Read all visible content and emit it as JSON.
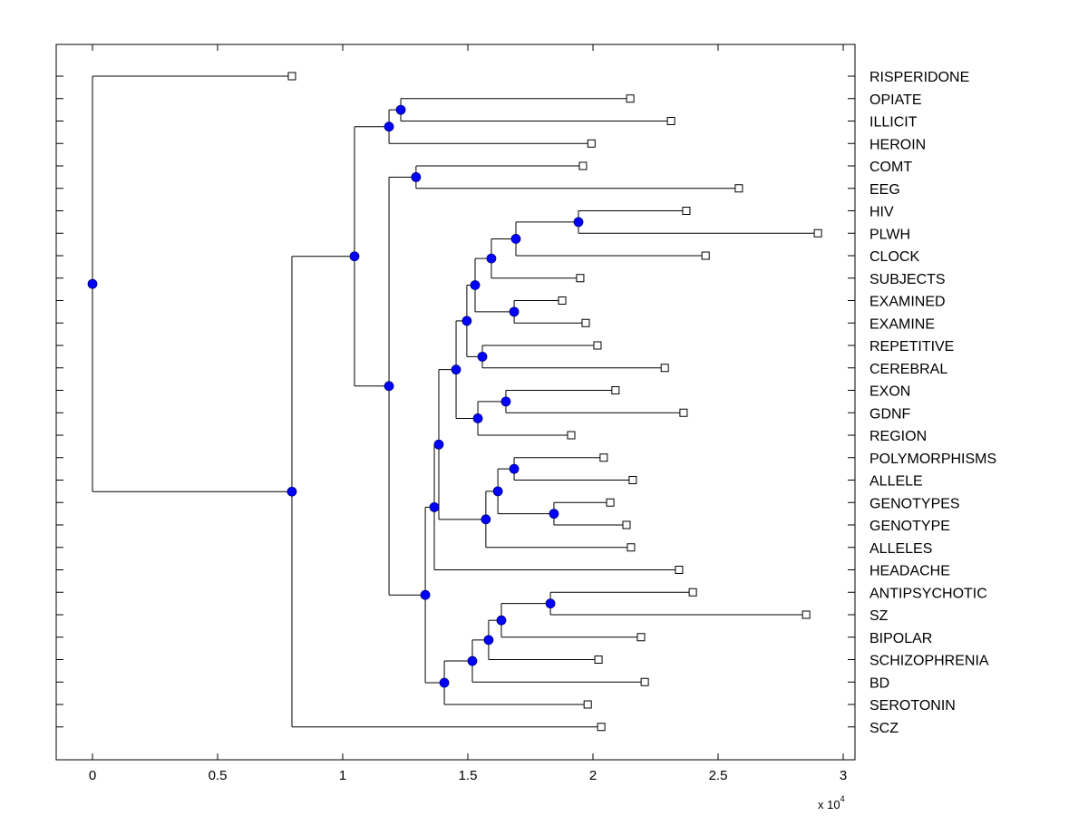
{
  "chart_data": {
    "type": "dendrogram",
    "title": "",
    "xlabel": "",
    "ylabel": "",
    "x_exponent_label": "x 10",
    "x_exponent_power": "4",
    "xlim": [
      -1400,
      30400
    ],
    "xticks": [
      0,
      5000,
      10000,
      15000,
      20000,
      25000,
      30000
    ],
    "xtick_labels": [
      "0",
      "0.5",
      "1",
      "1.5",
      "2",
      "2.5",
      "3"
    ],
    "grid": false,
    "colors": {
      "node_fill": "#0000ff",
      "leaf_fill": "#ffffff",
      "line": "#000000"
    },
    "leaves": [
      {
        "label": "RISPERIDONE",
        "x": 7970
      },
      {
        "label": "OPIATE",
        "x": 21490
      },
      {
        "label": "ILLICIT",
        "x": 23120
      },
      {
        "label": "HEROIN",
        "x": 19940
      },
      {
        "label": "COMT",
        "x": 19600
      },
      {
        "label": "EEG",
        "x": 25830
      },
      {
        "label": "HIV",
        "x": 23730
      },
      {
        "label": "PLWH",
        "x": 28990
      },
      {
        "label": "CLOCK",
        "x": 24500
      },
      {
        "label": "SUBJECTS",
        "x": 19490
      },
      {
        "label": "EXAMINED",
        "x": 18770
      },
      {
        "label": "EXAMINE",
        "x": 19710
      },
      {
        "label": "REPETITIVE",
        "x": 20180
      },
      {
        "label": "CEREBRAL",
        "x": 22870
      },
      {
        "label": "EXON",
        "x": 20900
      },
      {
        "label": "GDNF",
        "x": 23620
      },
      {
        "label": "REGION",
        "x": 19130
      },
      {
        "label": "POLYMORPHISMS",
        "x": 20430
      },
      {
        "label": "ALLELE",
        "x": 21590
      },
      {
        "label": "GENOTYPES",
        "x": 20690
      },
      {
        "label": "GENOTYPE",
        "x": 21340
      },
      {
        "label": "ALLELES",
        "x": 21520
      },
      {
        "label": "HEADACHE",
        "x": 23440
      },
      {
        "label": "ANTIPSYCHOTIC",
        "x": 23990
      },
      {
        "label": "SZ",
        "x": 28520
      },
      {
        "label": "BIPOLAR",
        "x": 21920
      },
      {
        "label": "SCHIZOPHRENIA",
        "x": 20220
      },
      {
        "label": "BD",
        "x": 22070
      },
      {
        "label": "SEROTONIN",
        "x": 19790
      },
      {
        "label": "SCZ",
        "x": 20330
      }
    ],
    "nodes": [
      {
        "id": "n_opiate_illicit",
        "x": 12320,
        "children": [
          "OPIATE",
          "ILLICIT"
        ]
      },
      {
        "id": "n_heroin",
        "x": 11850,
        "children": [
          "n_opiate_illicit",
          "HEROIN"
        ]
      },
      {
        "id": "n_comt_eeg",
        "x": 12930,
        "children": [
          "COMT",
          "EEG"
        ]
      },
      {
        "id": "n_hiv_plwh",
        "x": 19420,
        "children": [
          "HIV",
          "PLWH"
        ]
      },
      {
        "id": "n_clock",
        "x": 16920,
        "children": [
          "n_hiv_plwh",
          "CLOCK"
        ]
      },
      {
        "id": "n_subjects",
        "x": 15940,
        "children": [
          "n_clock",
          "SUBJECTS"
        ]
      },
      {
        "id": "n_examined",
        "x": 16850,
        "children": [
          "EXAMINED",
          "EXAMINE"
        ]
      },
      {
        "id": "n_subj_exam",
        "x": 15290,
        "children": [
          "n_subjects",
          "n_examined"
        ]
      },
      {
        "id": "n_rep_cer",
        "x": 15580,
        "children": [
          "REPETITIVE",
          "CEREBRAL"
        ]
      },
      {
        "id": "n_upper_mid",
        "x": 14960,
        "children": [
          "n_subj_exam",
          "n_rep_cer"
        ]
      },
      {
        "id": "n_exon_gdnf",
        "x": 16520,
        "children": [
          "EXON",
          "GDNF"
        ]
      },
      {
        "id": "n_region",
        "x": 15400,
        "children": [
          "n_exon_gdnf",
          "REGION"
        ]
      },
      {
        "id": "n_mid_a",
        "x": 14530,
        "children": [
          "n_upper_mid",
          "n_region"
        ]
      },
      {
        "id": "n_poly_allele",
        "x": 16850,
        "children": [
          "POLYMORPHISMS",
          "ALLELE"
        ]
      },
      {
        "id": "n_genotypes",
        "x": 18440,
        "children": [
          "GENOTYPES",
          "GENOTYPE"
        ]
      },
      {
        "id": "n_allele_geno",
        "x": 16200,
        "children": [
          "n_poly_allele",
          "n_genotypes"
        ]
      },
      {
        "id": "n_alleles",
        "x": 15720,
        "children": [
          "n_allele_geno",
          "ALLELES"
        ]
      },
      {
        "id": "n_mid_b",
        "x": 13840,
        "children": [
          "n_mid_a",
          "n_alleles"
        ]
      },
      {
        "id": "n_headache",
        "x": 13660,
        "children": [
          "n_mid_b",
          "HEADACHE"
        ]
      },
      {
        "id": "n_anti_sz",
        "x": 18300,
        "children": [
          "ANTIPSYCHOTIC",
          "SZ"
        ]
      },
      {
        "id": "n_bipolar",
        "x": 16340,
        "children": [
          "n_anti_sz",
          "BIPOLAR"
        ]
      },
      {
        "id": "n_schizo",
        "x": 15830,
        "children": [
          "n_bipolar",
          "SCHIZOPHRENIA"
        ]
      },
      {
        "id": "n_bd",
        "x": 15180,
        "children": [
          "n_schizo",
          "BD"
        ]
      },
      {
        "id": "n_serotonin",
        "x": 14060,
        "children": [
          "n_bd",
          "SEROTONIN"
        ]
      },
      {
        "id": "n_lower",
        "x": 13300,
        "children": [
          "n_headache",
          "n_serotonin"
        ]
      },
      {
        "id": "n_big",
        "x": 11850,
        "children": [
          "n_comt_eeg",
          "n_lower"
        ]
      },
      {
        "id": "n_top",
        "x": 10470,
        "children": [
          "n_heroin",
          "n_big"
        ]
      },
      {
        "id": "n_main",
        "x": 7970,
        "children": [
          "n_top",
          "SCZ"
        ]
      },
      {
        "id": "n_root",
        "x": 0,
        "children": [
          "RISPERIDONE",
          "n_main"
        ]
      }
    ]
  }
}
